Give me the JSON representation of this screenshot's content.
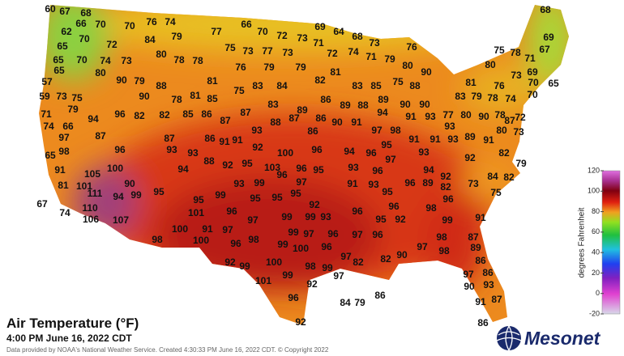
{
  "map": {
    "title": "Air Temperature (°F)",
    "timestamp": "4:00 PM June 16, 2022 CDT",
    "credit": "Data provided by NOAA's National Weather Service. Created 4:30:33 PM June 16, 2022 CDT. © Copyright 2022",
    "logo": "Mesonet",
    "colorbar": {
      "label": "degrees Fahrenheit",
      "lim": [
        -20,
        120
      ],
      "ticks": [
        120,
        100,
        80,
        60,
        40,
        20,
        0,
        -20
      ]
    },
    "stations": [
      60,
      67,
      68,
      66,
      70,
      70,
      76,
      74,
      62,
      70,
      72,
      84,
      79,
      77,
      66,
      70,
      72,
      73,
      69,
      71,
      64,
      68,
      73,
      76,
      68,
      69,
      75,
      78,
      67,
      71,
      65,
      65,
      70,
      74,
      73,
      80,
      78,
      78,
      75,
      73,
      77,
      73,
      72,
      74,
      71,
      79,
      76,
      79,
      79,
      80,
      90,
      80,
      73,
      69,
      70,
      65,
      57,
      59,
      73,
      75,
      65,
      80,
      90,
      79,
      88,
      81,
      75,
      83,
      84,
      82,
      81,
      83,
      85,
      75,
      88,
      81,
      76,
      90,
      78,
      81,
      85,
      83,
      79,
      78,
      74,
      70,
      71,
      79,
      94,
      96,
      82,
      82,
      85,
      86,
      87,
      83,
      89,
      86,
      89,
      88,
      89,
      94,
      90,
      90,
      91,
      93,
      77,
      80,
      90,
      78,
      72,
      74,
      66,
      87,
      88,
      87,
      86,
      90,
      91,
      93,
      87,
      97,
      87,
      87,
      86,
      91,
      91,
      93,
      86,
      97,
      98,
      80,
      73,
      98,
      96,
      93,
      92,
      100,
      96,
      94,
      96,
      95,
      91,
      91,
      93,
      89,
      91,
      65,
      93,
      97,
      93,
      82,
      91,
      100,
      94,
      88,
      92,
      95,
      103,
      96,
      95,
      93,
      96,
      94,
      92,
      79,
      105,
      99,
      96,
      92,
      84,
      82,
      81,
      101,
      90,
      95,
      93,
      97,
      91,
      93,
      96,
      89,
      82,
      73,
      75,
      111,
      94,
      99,
      95,
      99,
      95,
      95,
      95,
      95,
      96,
      67,
      110,
      92,
      96,
      96,
      98,
      74,
      106,
      107,
      101,
      96,
      99,
      99,
      93,
      95,
      92,
      99,
      91,
      97,
      100,
      91,
      97,
      99,
      97,
      96,
      97,
      96,
      87,
      98,
      98,
      100,
      98,
      96,
      99,
      100,
      96,
      97,
      89,
      98,
      92,
      99,
      100,
      98,
      97,
      99,
      82,
      82,
      90,
      86,
      97,
      97,
      86,
      99,
      101,
      92,
      90,
      93,
      96,
      84,
      79,
      86,
      91,
      87,
      92,
      86
    ]
  }
}
